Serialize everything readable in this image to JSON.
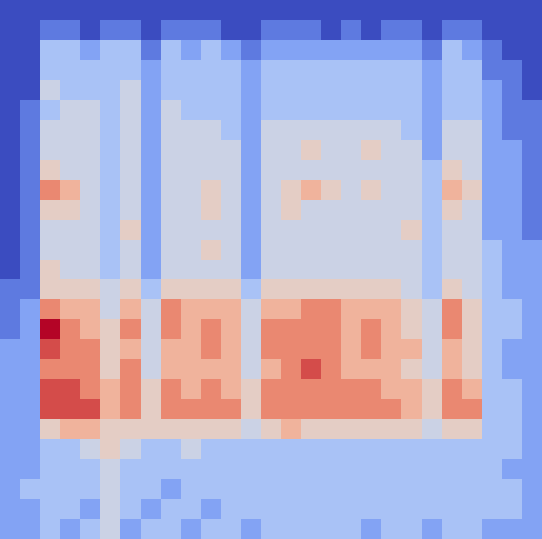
{
  "chart_data": {
    "type": "heatmap",
    "tick_labels": false,
    "cells": [
      [
        0,
        0,
        0,
        0,
        0,
        0,
        0,
        0,
        0,
        0,
        0,
        0,
        0,
        0,
        0,
        0,
        0,
        0,
        0,
        0,
        0,
        0,
        0,
        0,
        0,
        0,
        0
      ],
      [
        0,
        0,
        1,
        1,
        0,
        1,
        1,
        0,
        1,
        1,
        1,
        0,
        0,
        1,
        1,
        1,
        0,
        1,
        0,
        1,
        1,
        0,
        1,
        1,
        0,
        0,
        0
      ],
      [
        0,
        0,
        3,
        3,
        2,
        3,
        3,
        1,
        3,
        2,
        3,
        2,
        1,
        2,
        2,
        2,
        2,
        2,
        2,
        2,
        2,
        1,
        3,
        2,
        1,
        0,
        0
      ],
      [
        0,
        0,
        3,
        3,
        3,
        3,
        3,
        2,
        3,
        3,
        3,
        3,
        2,
        3,
        3,
        3,
        3,
        3,
        3,
        3,
        3,
        2,
        3,
        3,
        1,
        1,
        0
      ],
      [
        0,
        0,
        4,
        3,
        3,
        3,
        4,
        2,
        3,
        3,
        3,
        3,
        2,
        3,
        3,
        3,
        3,
        3,
        3,
        3,
        3,
        2,
        3,
        3,
        2,
        1,
        0
      ],
      [
        0,
        1,
        3,
        4,
        4,
        3,
        4,
        2,
        4,
        3,
        3,
        3,
        2,
        3,
        3,
        3,
        3,
        3,
        3,
        3,
        3,
        2,
        3,
        3,
        2,
        1,
        1
      ],
      [
        0,
        1,
        4,
        4,
        4,
        3,
        4,
        2,
        4,
        4,
        4,
        3,
        2,
        4,
        4,
        4,
        4,
        4,
        4,
        4,
        3,
        2,
        4,
        4,
        2,
        1,
        1
      ],
      [
        0,
        1,
        4,
        4,
        4,
        3,
        4,
        2,
        4,
        4,
        4,
        4,
        2,
        4,
        4,
        5,
        4,
        4,
        5,
        4,
        4,
        2,
        4,
        4,
        2,
        2,
        1
      ],
      [
        0,
        1,
        5,
        4,
        4,
        3,
        4,
        2,
        4,
        4,
        4,
        4,
        2,
        4,
        4,
        4,
        4,
        4,
        4,
        4,
        4,
        3,
        5,
        4,
        2,
        2,
        1
      ],
      [
        0,
        1,
        7,
        6,
        4,
        3,
        4,
        2,
        4,
        4,
        5,
        4,
        2,
        4,
        5,
        6,
        5,
        4,
        5,
        4,
        4,
        3,
        6,
        5,
        2,
        2,
        1
      ],
      [
        0,
        1,
        5,
        5,
        4,
        3,
        4,
        2,
        4,
        4,
        5,
        4,
        2,
        4,
        5,
        4,
        4,
        4,
        4,
        4,
        4,
        3,
        5,
        4,
        2,
        2,
        1
      ],
      [
        0,
        1,
        4,
        4,
        4,
        3,
        5,
        2,
        4,
        4,
        4,
        4,
        2,
        4,
        4,
        4,
        4,
        4,
        4,
        4,
        5,
        3,
        4,
        4,
        2,
        2,
        1
      ],
      [
        0,
        1,
        4,
        4,
        4,
        3,
        4,
        2,
        4,
        4,
        5,
        4,
        2,
        4,
        4,
        4,
        4,
        4,
        4,
        4,
        4,
        3,
        4,
        4,
        3,
        2,
        2
      ],
      [
        0,
        1,
        5,
        4,
        4,
        3,
        4,
        2,
        4,
        4,
        4,
        4,
        2,
        4,
        4,
        4,
        4,
        4,
        4,
        4,
        4,
        3,
        4,
        4,
        3,
        2,
        2
      ],
      [
        1,
        1,
        5,
        5,
        5,
        4,
        5,
        3,
        5,
        5,
        5,
        5,
        3,
        5,
        5,
        5,
        5,
        5,
        5,
        5,
        4,
        3,
        5,
        4,
        3,
        2,
        2
      ],
      [
        1,
        2,
        7,
        6,
        6,
        4,
        6,
        4,
        7,
        6,
        6,
        6,
        4,
        6,
        6,
        7,
        7,
        6,
        6,
        6,
        5,
        4,
        7,
        5,
        3,
        3,
        2
      ],
      [
        1,
        2,
        9,
        7,
        6,
        5,
        7,
        4,
        7,
        6,
        7,
        6,
        4,
        7,
        7,
        7,
        7,
        6,
        7,
        6,
        5,
        4,
        7,
        5,
        3,
        3,
        2
      ],
      [
        2,
        2,
        8,
        7,
        7,
        5,
        6,
        4,
        6,
        6,
        7,
        6,
        4,
        7,
        7,
        7,
        7,
        6,
        7,
        6,
        6,
        4,
        6,
        5,
        3,
        2,
        2
      ],
      [
        2,
        2,
        7,
        7,
        7,
        5,
        7,
        4,
        6,
        6,
        6,
        6,
        4,
        6,
        7,
        8,
        7,
        6,
        6,
        6,
        5,
        4,
        6,
        5,
        3,
        2,
        2
      ],
      [
        2,
        2,
        8,
        8,
        7,
        6,
        7,
        5,
        7,
        6,
        7,
        6,
        5,
        7,
        7,
        7,
        7,
        7,
        7,
        6,
        6,
        5,
        7,
        6,
        3,
        3,
        2
      ],
      [
        2,
        2,
        8,
        8,
        8,
        6,
        7,
        5,
        7,
        7,
        7,
        7,
        5,
        7,
        7,
        7,
        7,
        7,
        7,
        7,
        6,
        5,
        7,
        7,
        3,
        3,
        2
      ],
      [
        2,
        2,
        5,
        6,
        6,
        5,
        5,
        5,
        5,
        5,
        5,
        5,
        4,
        5,
        6,
        5,
        5,
        5,
        5,
        5,
        5,
        4,
        5,
        5,
        3,
        3,
        2
      ],
      [
        2,
        2,
        3,
        3,
        4,
        5,
        4,
        3,
        3,
        4,
        3,
        3,
        3,
        3,
        3,
        3,
        3,
        3,
        3,
        3,
        3,
        3,
        3,
        3,
        3,
        3,
        2
      ],
      [
        2,
        2,
        3,
        3,
        3,
        4,
        3,
        3,
        3,
        3,
        3,
        3,
        3,
        3,
        3,
        3,
        3,
        3,
        3,
        3,
        3,
        3,
        3,
        3,
        3,
        2,
        2
      ],
      [
        2,
        3,
        3,
        3,
        3,
        4,
        3,
        3,
        2,
        3,
        3,
        3,
        3,
        3,
        3,
        3,
        3,
        3,
        3,
        3,
        3,
        3,
        3,
        3,
        3,
        3,
        2
      ],
      [
        2,
        2,
        3,
        3,
        2,
        4,
        3,
        2,
        3,
        3,
        2,
        3,
        3,
        3,
        3,
        3,
        3,
        3,
        3,
        3,
        3,
        3,
        3,
        3,
        3,
        3,
        2
      ],
      [
        2,
        2,
        3,
        2,
        3,
        4,
        2,
        3,
        3,
        2,
        3,
        3,
        2,
        3,
        3,
        3,
        3,
        3,
        2,
        3,
        3,
        2,
        3,
        3,
        2,
        2,
        2
      ]
    ]
  }
}
